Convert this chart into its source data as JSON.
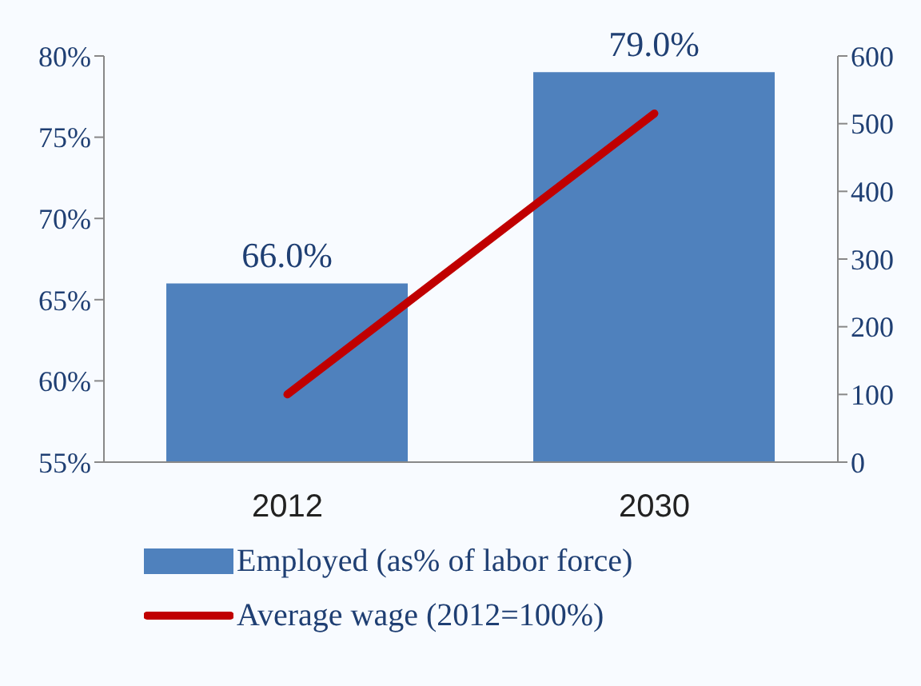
{
  "chart_data": {
    "type": "bar",
    "categories": [
      "2012",
      "2030"
    ],
    "series": [
      {
        "name": "Employed (as% of labor force)",
        "color": "#4f81bd",
        "values": [
          66.0,
          79.0
        ],
        "value_labels": [
          "66.0%",
          "79.0%"
        ]
      },
      {
        "name": "Average wage (2012=100%)",
        "type": "line",
        "axis": "y2",
        "color": "#c00000",
        "values": [
          100,
          515
        ],
        "marker": "none"
      }
    ],
    "ylim": [
      55,
      80
    ],
    "yticks": [
      {
        "value": 55,
        "label": "55%"
      },
      {
        "value": 60,
        "label": "60%"
      },
      {
        "value": 65,
        "label": "65%"
      },
      {
        "value": 70,
        "label": "70%"
      },
      {
        "value": 75,
        "label": "75%"
      },
      {
        "value": 80,
        "label": "80%"
      }
    ],
    "y2lim": [
      0,
      600
    ],
    "y2ticks": [
      0,
      100,
      200,
      300,
      400,
      500,
      600
    ],
    "grid": false,
    "legend": "bottom"
  }
}
